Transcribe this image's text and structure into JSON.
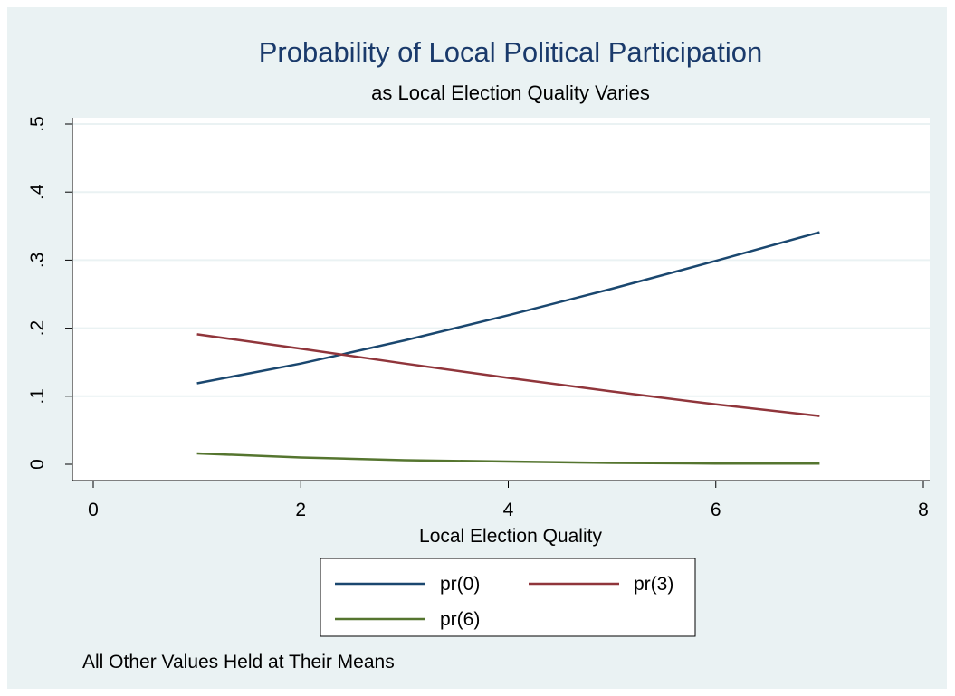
{
  "chart_data": {
    "type": "line",
    "title": "Probability of Local Political Participation",
    "subtitle": "as Local Election Quality Varies",
    "xlabel": "Local Election Quality",
    "ylabel": "",
    "xlim": [
      0,
      8
    ],
    "ylim": [
      0,
      0.5
    ],
    "x_ticks": [
      0,
      2,
      4,
      6,
      8
    ],
    "x_tick_labels": [
      "0",
      "2",
      "4",
      "6",
      "8"
    ],
    "y_ticks": [
      0,
      0.1,
      0.2,
      0.3,
      0.4,
      0.5
    ],
    "y_tick_labels": [
      "0",
      ".1",
      ".2",
      ".3",
      ".4",
      ".5"
    ],
    "grid": true,
    "legend_position": "bottom",
    "x": [
      1,
      2,
      3,
      4,
      5,
      6,
      7
    ],
    "series": [
      {
        "name": "pr(0)",
        "color": "#1a476f",
        "values": [
          0.119,
          0.148,
          0.182,
          0.219,
          0.258,
          0.299,
          0.341
        ]
      },
      {
        "name": "pr(3)",
        "color": "#90353b",
        "values": [
          0.191,
          0.17,
          0.148,
          0.127,
          0.107,
          0.088,
          0.071
        ]
      },
      {
        "name": "pr(6)",
        "color": "#55752f",
        "values": [
          0.016,
          0.01,
          0.006,
          0.004,
          0.002,
          0.001,
          0.001
        ]
      }
    ],
    "note": "All Other Values Held at Their Means"
  }
}
